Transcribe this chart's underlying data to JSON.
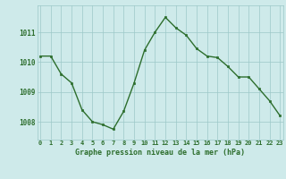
{
  "x": [
    0,
    1,
    2,
    3,
    4,
    5,
    6,
    7,
    8,
    9,
    10,
    11,
    12,
    13,
    14,
    15,
    16,
    17,
    18,
    19,
    20,
    21,
    22,
    23
  ],
  "y": [
    1010.2,
    1010.2,
    1009.6,
    1009.3,
    1008.4,
    1008.0,
    1007.9,
    1007.75,
    1008.35,
    1009.3,
    1010.4,
    1011.0,
    1011.5,
    1011.15,
    1010.9,
    1010.45,
    1010.2,
    1010.15,
    1009.85,
    1009.5,
    1009.5,
    1009.1,
    1008.7,
    1008.2
  ],
  "line_color": "#2d6e2d",
  "marker_color": "#2d6e2d",
  "bg_color": "#ceeaea",
  "grid_color": "#9cc8c8",
  "title": "Graphe pression niveau de la mer (hPa)",
  "xlabel_ticks": [
    "0",
    "1",
    "2",
    "3",
    "4",
    "5",
    "6",
    "7",
    "8",
    "9",
    "10",
    "11",
    "12",
    "13",
    "14",
    "15",
    "16",
    "17",
    "18",
    "19",
    "20",
    "21",
    "22",
    "23"
  ],
  "yticks": [
    1008,
    1009,
    1010,
    1011
  ],
  "ylim": [
    1007.4,
    1011.9
  ],
  "xlim": [
    -0.3,
    23.3
  ]
}
